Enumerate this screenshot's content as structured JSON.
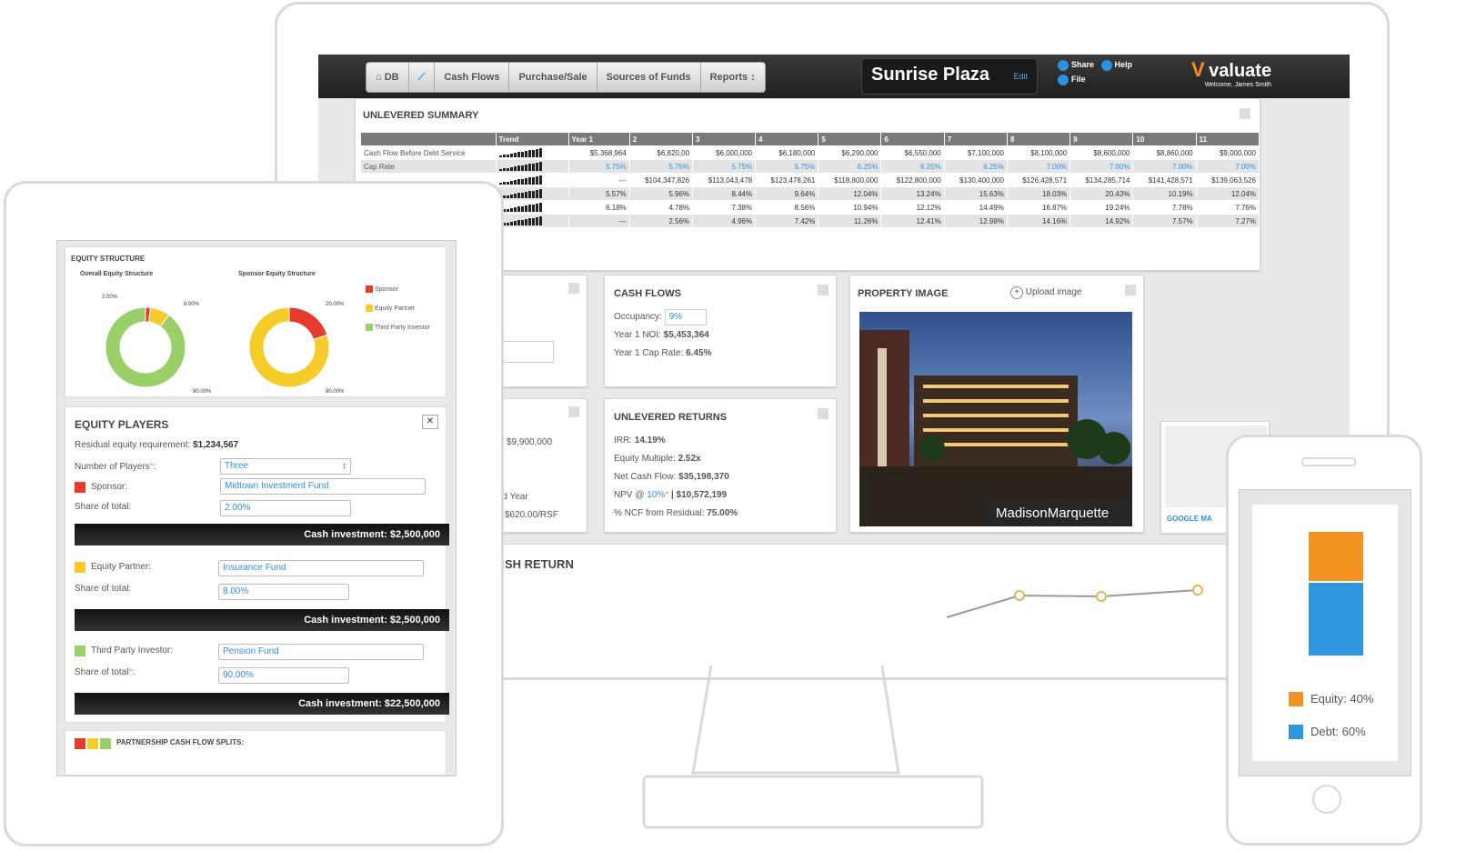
{
  "desktop": {
    "nav_tabs": [
      "DB",
      "Cash Flows",
      "Purchase/Sale",
      "Sources of Funds",
      "Reports"
    ],
    "property_name": "Sunrise Plaza",
    "edit_label": "Edit",
    "share_label": "Share",
    "help_label": "Help",
    "file_label": "File",
    "brand": "valuate",
    "welcome": "Welcome, James Smith",
    "summary": {
      "title": "UNLEVERED SUMMARY",
      "headers": [
        "",
        "Trend",
        "Year 1",
        "2",
        "3",
        "4",
        "5",
        "6",
        "7",
        "8",
        "9",
        "10",
        "11"
      ],
      "rows": [
        {
          "label": "Cash Flow Before Debt Service",
          "values": [
            "$5,368,964",
            "$6,820,00",
            "$6,000,000",
            "$6,180,000",
            "$6,290,000",
            "$6,550,000",
            "$7,100,000",
            "$8,100,000",
            "$8,600,000",
            "$8,860,000",
            "$9,000,000"
          ]
        },
        {
          "label": "Cap Rate",
          "values": [
            "5.75%",
            "5.75%",
            "5.75%",
            "5.75%",
            "6.25%",
            "6.25%",
            "6.25%",
            "7.00%",
            "7.00%",
            "7.00%",
            "7.00%"
          ]
        },
        {
          "label": "",
          "values": [
            "---",
            "$104,347,826",
            "$113,043,478",
            "$123,478,261",
            "$118,800,000",
            "$122,800,000",
            "$130,400,000",
            "$126,428,571",
            "$134,285,714",
            "$141,428,571",
            "$139,063,526"
          ]
        },
        {
          "label": "",
          "values": [
            "5.57%",
            "5.96%",
            "8.44%",
            "9.64%",
            "12.04%",
            "13.24%",
            "15.63%",
            "18.03%",
            "20.43%",
            "10.19%",
            "12.04%"
          ]
        },
        {
          "label": "",
          "values": [
            "6.18%",
            "4.78%",
            "7.38%",
            "8.56%",
            "10.94%",
            "12.12%",
            "14.49%",
            "16.87%",
            "19.24%",
            "7.78%",
            "7.76%"
          ]
        },
        {
          "label": "",
          "values": [
            "---",
            "2.56%",
            "4.96%",
            "7.42%",
            "11.26%",
            "12.41%",
            "12.98%",
            "14.16%",
            "14.92%",
            "7.57%",
            "7.27%"
          ]
        }
      ]
    },
    "partial": {
      "value1": "$9,900,000",
      "year_link": "rd Year",
      "rsf": "$620.00/RSF",
      "chart_title": "SH RETURN"
    },
    "cash_flows": {
      "title": "CASH FLOWS",
      "occupancy_label": "Occupancy:",
      "occupancy_value": "9%",
      "noi_label": "Year 1 NOI:",
      "noi_value": "$5,453,364",
      "cap_label": "Year 1 Cap Rate:",
      "cap_value": "6.45%"
    },
    "returns": {
      "title": "UNLEVERED RETURNS",
      "irr_label": "IRR:",
      "irr_value": "14.19%",
      "multiple_label": "Equity Multiple:",
      "multiple_value": "2.52x",
      "ncf_label": "Net Cash Flow:",
      "ncf_value": "$35,198,370",
      "npv_label": "NPV @",
      "npv_rate": "10%",
      "npv_value": "| $10,572,199",
      "residual_label": "% NCF from Residual:",
      "residual_value": "75.00%"
    },
    "image_panel": {
      "title": "PROPERTY IMAGE",
      "upload": "Upload image",
      "watermark": "MadisonMarquette"
    },
    "map_label": "GOOGLE MA"
  },
  "tablet": {
    "equity_structure": {
      "title": "EQUITY STRUCTURE",
      "overall_title": "Overall Equity Structure",
      "sponsor_title": "Sponsor Equity Structure",
      "overall_labels": [
        "2.00%",
        "8.00%",
        "90.00%"
      ],
      "sponsor_labels": [
        "20.00%",
        "80.00%"
      ],
      "legend": [
        "Sponsor",
        "Equity Partner",
        "Third Party Investor"
      ],
      "colors": {
        "sponsor": "#e53b2c",
        "partner": "#f5cc2a",
        "third": "#9bcf6a"
      },
      "overall_values": [
        2,
        8,
        90
      ],
      "sponsor_values": [
        20,
        80
      ]
    },
    "players": {
      "title": "EQUITY PLAYERS",
      "residual_label": "Residual equity requirement:",
      "residual_value": "$1,234,567",
      "count_label": "Number of Players",
      "count_value": "Three",
      "sponsor_label": "Sponsor:",
      "sponsor_value": "Midtown Investment Fund",
      "share_label": "Share of total:",
      "sponsor_share": "2.00%",
      "sponsor_cash": "Cash investment: $2,500,000",
      "partner_label": "Equity Partner:",
      "partner_value": "Insurance Fund",
      "partner_share": "8.00%",
      "partner_cash": "Cash investment: $2,500,000",
      "third_label": "Third Party Investor:",
      "third_value": "Pension Fund",
      "third_share_label": "Share of total",
      "third_share": "90.00%",
      "third_cash": "Cash investment: $22,500,000"
    },
    "splits_title": "PARTNERSHIP CASH FLOW SPLITS:"
  },
  "phone": {
    "equity_label": "Equity: 40%",
    "debt_label": "Debt: 60%",
    "equity_pct": 40,
    "debt_pct": 60,
    "colors": {
      "equity": "#f39322",
      "debt": "#2f97e0"
    }
  }
}
